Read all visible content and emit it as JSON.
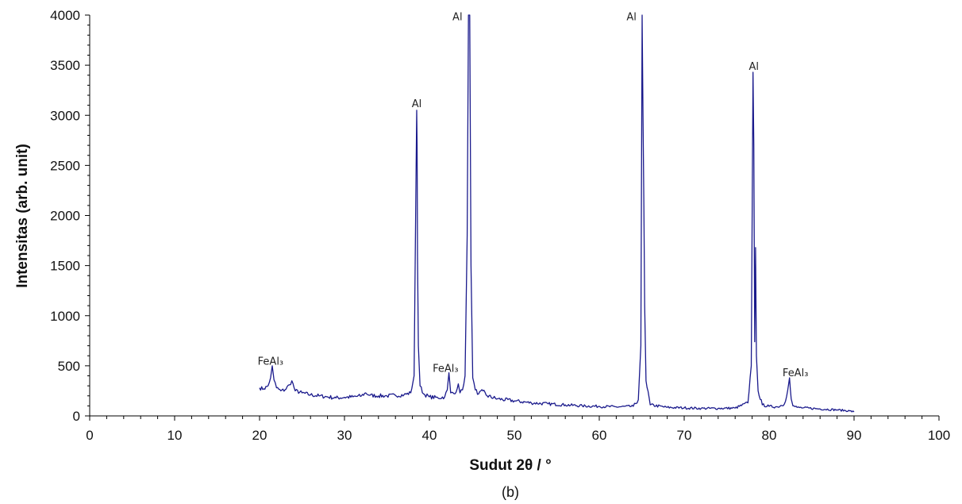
{
  "chart_data": {
    "type": "line",
    "xlabel": "Sudut 2θ / °",
    "ylabel": "Intensitas (arb. unit)",
    "caption": "(b)",
    "xlim": [
      0,
      100
    ],
    "ylim": [
      0,
      4000
    ],
    "xticks": [
      0,
      10,
      20,
      30,
      40,
      50,
      60,
      70,
      80,
      90,
      100
    ],
    "yticks": [
      0,
      500,
      1000,
      1500,
      2000,
      2500,
      3000,
      3500,
      4000
    ],
    "grid": false,
    "legend": "none",
    "line_color": "#1a1a8c",
    "series": [
      {
        "x": [
          20,
          20.5,
          21,
          21.3,
          21.5,
          21.7,
          22,
          22.5,
          23,
          23.5,
          23.8,
          24.2,
          25,
          26,
          27,
          28,
          29,
          30,
          31,
          32,
          32.5,
          33,
          34,
          35,
          36,
          37,
          37.8,
          38.2,
          38.4,
          38.5,
          38.55,
          38.6,
          38.7,
          38.9,
          39.3,
          40,
          41,
          41.8,
          42.1,
          42.3,
          42.5,
          43,
          43.4,
          43.6,
          43.9,
          44.2,
          44.45,
          44.6,
          44.75,
          44.9,
          45.1,
          45.4,
          45.8,
          46.3,
          46.8,
          48,
          50,
          52,
          54,
          56,
          58,
          60,
          62,
          64,
          64.6,
          64.9,
          65.05,
          65.15,
          65.25,
          65.35,
          65.5,
          66,
          68,
          70,
          72,
          74,
          76,
          77.5,
          77.9,
          78.1,
          78.2,
          78.3,
          78.4,
          78.5,
          78.7,
          79.2,
          80,
          81,
          81.8,
          82.2,
          82.4,
          82.5,
          82.6,
          82.8,
          83.3,
          84,
          86,
          88,
          89.5,
          90
        ],
        "y": [
          280,
          270,
          300,
          380,
          500,
          360,
          280,
          250,
          260,
          310,
          350,
          250,
          230,
          210,
          200,
          190,
          180,
          185,
          190,
          200,
          230,
          205,
          200,
          200,
          205,
          210,
          230,
          400,
          2200,
          3050,
          2700,
          1600,
          700,
          300,
          220,
          190,
          180,
          190,
          260,
          430,
          230,
          220,
          320,
          230,
          260,
          400,
          1800,
          4000,
          4000,
          1500,
          380,
          260,
          220,
          250,
          200,
          170,
          150,
          130,
          120,
          110,
          100,
          95,
          90,
          95,
          160,
          700,
          4000,
          3000,
          2100,
          1100,
          350,
          110,
          85,
          80,
          75,
          75,
          78,
          130,
          500,
          3430,
          2700,
          740,
          1680,
          600,
          250,
          110,
          95,
          90,
          120,
          260,
          380,
          260,
          170,
          100,
          85,
          80,
          70,
          60,
          50,
          40
        ]
      }
    ],
    "annotations": [
      {
        "text": "FeAl₃",
        "x": 21.3,
        "y": 510
      },
      {
        "text": "Al",
        "x": 38.5,
        "y": 3080
      },
      {
        "text": "FeAl₃",
        "x": 41.9,
        "y": 440
      },
      {
        "text": "Al",
        "x": 43.3,
        "y": 3950
      },
      {
        "text": "Al",
        "x": 63.8,
        "y": 3950
      },
      {
        "text": "Al",
        "x": 78.2,
        "y": 3455
      },
      {
        "text": "FeAl₃",
        "x": 83.1,
        "y": 395
      }
    ]
  }
}
